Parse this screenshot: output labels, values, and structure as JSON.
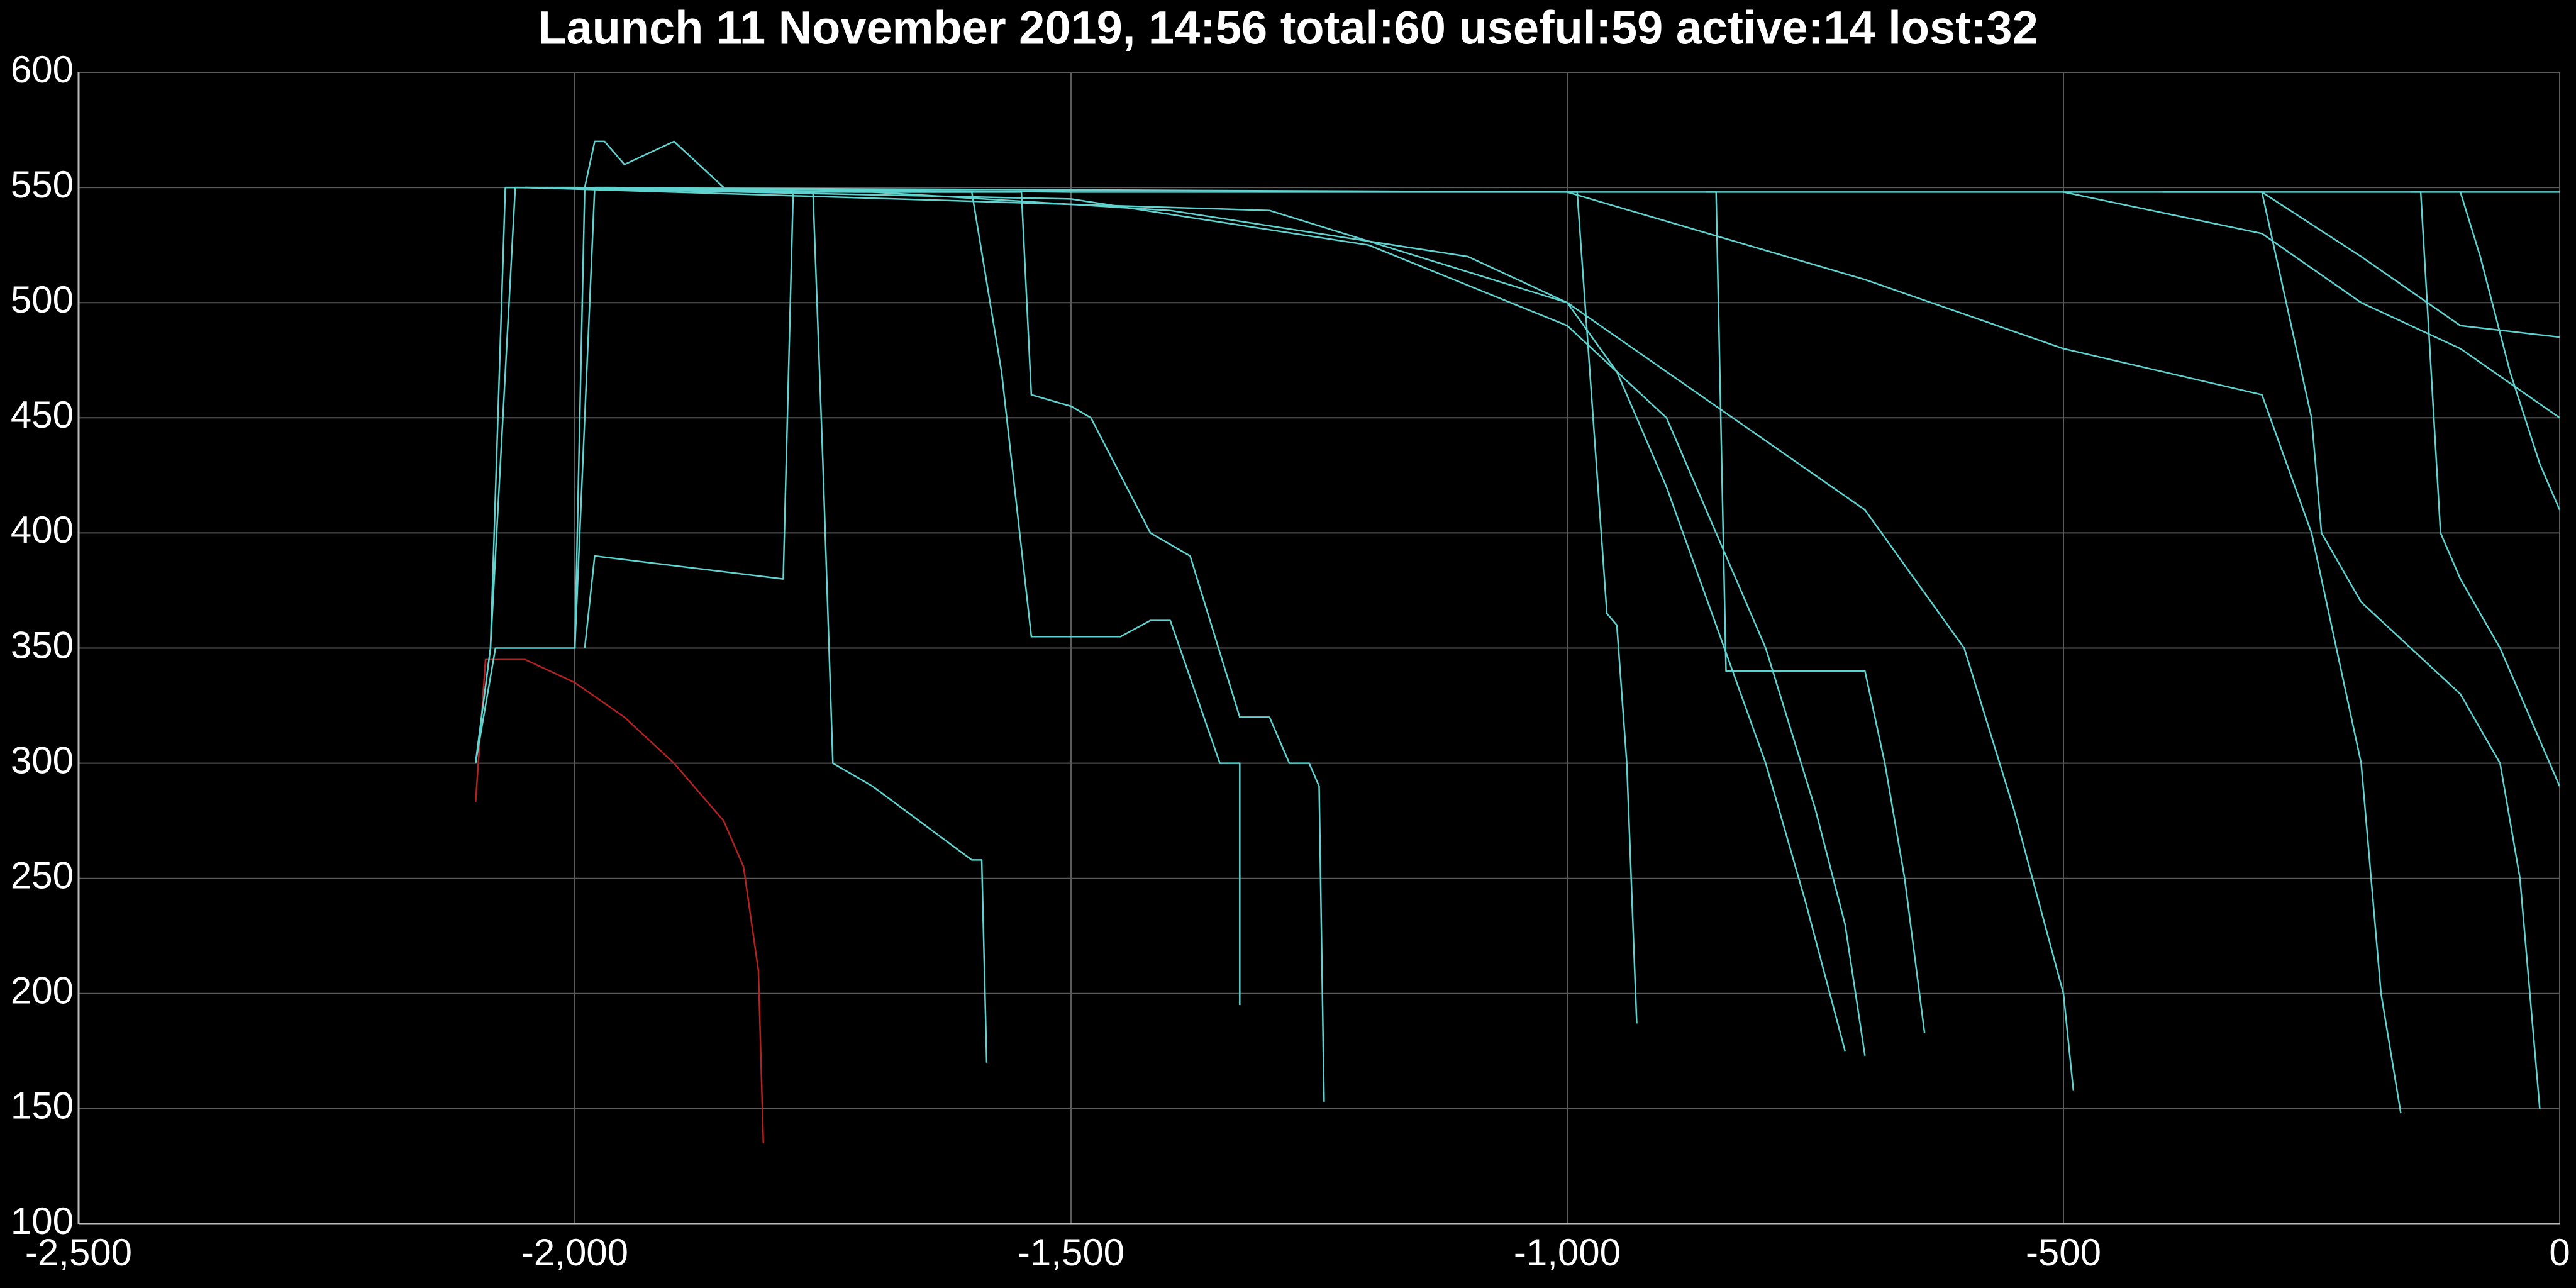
{
  "chart_data": {
    "type": "line",
    "title": "Launch 11 November 2019, 14:56 total:60 useful:59 active:14 lost:32",
    "xlim": [
      -2500,
      0
    ],
    "ylim": [
      100,
      600
    ],
    "xticks": [
      {
        "value": -2500,
        "label": "-2,500"
      },
      {
        "value": -2000,
        "label": "-2,000"
      },
      {
        "value": -1500,
        "label": "-1,500"
      },
      {
        "value": -1000,
        "label": "-1,000"
      },
      {
        "value": -500,
        "label": "-500"
      },
      0
    ],
    "yticks": [
      100,
      150,
      200,
      250,
      300,
      350,
      400,
      450,
      500,
      550,
      600
    ],
    "grid": true,
    "series": [
      {
        "color": "#b22222",
        "x": [
          -2100,
          -2090,
          -2050,
          -2000,
          -1950,
          -1900,
          -1850,
          -1830,
          -1815,
          -1810
        ],
        "values": [
          283,
          345,
          345,
          335,
          320,
          300,
          275,
          255,
          210,
          135
        ]
      },
      {
        "color": "#5fd3cf",
        "x": [
          -2100,
          -2085,
          -2070,
          -2000,
          -1500,
          -1000,
          -500,
          0
        ],
        "values": [
          300,
          350,
          550,
          550,
          548,
          548,
          548,
          548
        ]
      },
      {
        "color": "#5fd3cf",
        "x": [
          -2100,
          -2085,
          -2060,
          -1700,
          -1400,
          -1100,
          -1000,
          -950,
          -900,
          -850,
          -800,
          -760,
          -720
        ],
        "values": [
          300,
          350,
          550,
          548,
          540,
          520,
          500,
          470,
          420,
          360,
          300,
          240,
          175
        ]
      },
      {
        "color": "#5fd3cf",
        "x": [
          -2000,
          -1980,
          -1960,
          -1800,
          -1760,
          -1750,
          -1740,
          -1700,
          -1600,
          -1590,
          -1585
        ],
        "values": [
          350,
          550,
          550,
          548,
          548,
          430,
          300,
          290,
          258,
          258,
          170
        ]
      },
      {
        "color": "#5fd3cf",
        "x": [
          -1990,
          -1980,
          -1790,
          -1780,
          -1600,
          -1570,
          -1540,
          -1450,
          -1420,
          -1400,
          -1350,
          -1330,
          -1330
        ],
        "values": [
          350,
          390,
          380,
          548,
          548,
          470,
          355,
          355,
          362,
          362,
          300,
          300,
          195
        ]
      },
      {
        "color": "#5fd3cf",
        "x": [
          -1720,
          -1550,
          -1540,
          -1500,
          -1480,
          -1420,
          -1380,
          -1330,
          -1300,
          -1280,
          -1260,
          -1250,
          -1245
        ],
        "values": [
          548,
          548,
          460,
          455,
          450,
          400,
          390,
          320,
          320,
          300,
          300,
          290,
          153
        ]
      },
      {
        "color": "#5fd3cf",
        "x": [
          -2050,
          -1500,
          -1200,
          -1000,
          -900,
          -850,
          -800,
          -750,
          -720,
          -700
        ],
        "values": [
          550,
          545,
          525,
          490,
          450,
          400,
          350,
          280,
          230,
          173
        ]
      },
      {
        "color": "#5fd3cf",
        "x": [
          -2050,
          -1300,
          -1000,
          -800,
          -700,
          -600,
          -550,
          -500,
          -490
        ],
        "values": [
          550,
          540,
          500,
          440,
          410,
          350,
          280,
          200,
          158
        ]
      },
      {
        "color": "#5fd3cf",
        "x": [
          -2050,
          -1000,
          -700,
          -500,
          -300,
          -250,
          -200,
          -180,
          -160
        ],
        "values": [
          550,
          548,
          510,
          480,
          460,
          400,
          300,
          200,
          148
        ]
      },
      {
        "color": "#5fd3cf",
        "x": [
          -1000,
          -990,
          -960,
          -950,
          -940,
          -930
        ],
        "values": [
          548,
          548,
          365,
          360,
          300,
          187
        ]
      },
      {
        "color": "#5fd3cf",
        "x": [
          -860,
          -850,
          -840,
          -830,
          -700,
          -680,
          -660,
          -640
        ],
        "values": [
          548,
          548,
          340,
          340,
          340,
          300,
          250,
          183
        ]
      },
      {
        "color": "#5fd3cf",
        "x": [
          -400,
          -300,
          -250,
          -240,
          -200,
          -100,
          -60,
          -40,
          -20
        ],
        "values": [
          548,
          548,
          450,
          400,
          370,
          330,
          300,
          250,
          150
        ]
      },
      {
        "color": "#5fd3cf",
        "x": [
          -500,
          -300,
          -200,
          -100,
          0
        ],
        "values": [
          548,
          530,
          500,
          480,
          450
        ]
      },
      {
        "color": "#5fd3cf",
        "x": [
          -150,
          -140,
          -120,
          -100,
          -60,
          -30,
          0
        ],
        "values": [
          548,
          548,
          400,
          380,
          350,
          320,
          290
        ]
      },
      {
        "color": "#5fd3cf",
        "x": [
          -300,
          -200,
          -100,
          0
        ],
        "values": [
          548,
          520,
          490,
          485
        ]
      },
      {
        "color": "#5fd3cf",
        "x": [
          -100,
          -80,
          -50,
          -20,
          0
        ],
        "values": [
          548,
          520,
          470,
          430,
          410
        ]
      },
      {
        "color": "#5fd3cf",
        "x": [
          -2100,
          -2080,
          -2040,
          -2000,
          -1990,
          -1980,
          -1970,
          -1950,
          -1900,
          -1850
        ],
        "values": [
          300,
          350,
          350,
          350,
          550,
          570,
          570,
          560,
          570,
          550
        ]
      }
    ]
  }
}
